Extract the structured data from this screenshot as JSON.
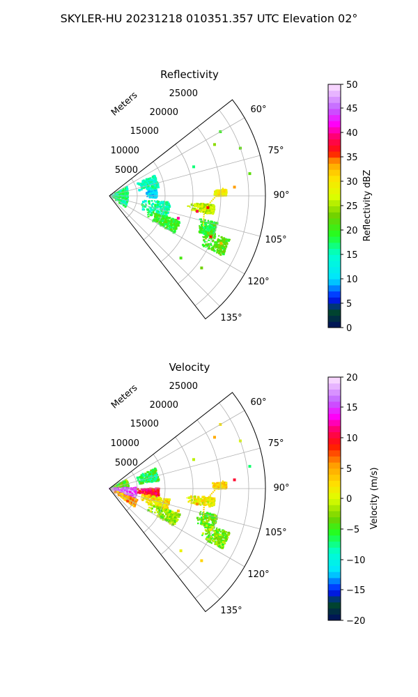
{
  "figure": {
    "title": "SKYLER-HU  20231218  010351.357 UTC Elevation 02°"
  },
  "panels": [
    {
      "title": "Reflectivity",
      "radius_label": "Meters",
      "range_ticks": [
        "5000",
        "10000",
        "15000",
        "20000",
        "25000"
      ],
      "angle_ticks": [
        "60°",
        "75°",
        "90°",
        "105°",
        "120°",
        "135°"
      ],
      "colorbar": {
        "label": "Reflectivity dBZ",
        "ticks": [
          "0",
          "5",
          "10",
          "15",
          "20",
          "25",
          "30",
          "35",
          "40",
          "45",
          "50"
        ]
      }
    },
    {
      "title": "Velocity",
      "radius_label": "Meters",
      "range_ticks": [
        "5000",
        "10000",
        "15000",
        "20000",
        "25000"
      ],
      "angle_ticks": [
        "60°",
        "75°",
        "90°",
        "105°",
        "120°",
        "135°"
      ],
      "colorbar": {
        "label": "Velocity (m/s)",
        "ticks": [
          "−20",
          "−15",
          "−10",
          "−5",
          "0",
          "5",
          "10",
          "15",
          "20"
        ]
      }
    }
  ],
  "chart_data": [
    {
      "type": "heatmap",
      "projection": "polar",
      "title": "Reflectivity",
      "radius_label": "Meters",
      "theta_range_deg": [
        52,
        142
      ],
      "r_range": [
        0,
        28000
      ],
      "range_ticks": [
        5000,
        10000,
        15000,
        20000,
        25000
      ],
      "angle_ticks_deg": [
        60,
        75,
        90,
        105,
        120,
        135
      ],
      "grid": true,
      "colorbar": {
        "label": "Reflectivity dBZ",
        "range": [
          0,
          50
        ],
        "ticks": [
          0,
          5,
          10,
          15,
          20,
          25,
          30,
          35,
          40,
          45,
          50
        ]
      },
      "echo_regions": [
        {
          "theta_deg": [
            63,
            125
          ],
          "r": [
            0,
            3500
          ],
          "value": 17
        },
        {
          "theta_deg": [
            66,
            81
          ],
          "r": [
            5000,
            9000
          ],
          "value": 15
        },
        {
          "theta_deg": [
            83,
            92
          ],
          "r": [
            6500,
            8500
          ],
          "value": 11
        },
        {
          "theta_deg": [
            96,
            112
          ],
          "r": [
            5500,
            11000
          ],
          "value": 16
        },
        {
          "theta_deg": [
            110,
            120
          ],
          "r": [
            7000,
            13500
          ],
          "value": 20
        },
        {
          "theta_deg": [
            104,
            112
          ],
          "r": [
            16500,
            20000
          ],
          "value": 19
        },
        {
          "theta_deg": [
            110,
            118
          ],
          "r": [
            18000,
            23000
          ],
          "value": 21
        },
        {
          "theta_deg": [
            95,
            100
          ],
          "r": [
            14000,
            19000
          ],
          "value": 26
        },
        {
          "theta_deg": [
            87,
            90
          ],
          "r": [
            18500,
            21000
          ],
          "value": 29
        }
      ],
      "lines": [
        {
          "name": "streak",
          "points": [
            [
              86,
              20500
            ],
            [
              98,
              17200
            ],
            [
              108,
              17700
            ]
          ],
          "value": 30
        }
      ],
      "scatter": [
        {
          "theta_deg": 100,
          "r": 16000,
          "value": 38
        },
        {
          "theta_deg": 96.8,
          "r": 17800,
          "value": 36
        },
        {
          "theta_deg": 86,
          "r": 22500,
          "value": 34
        },
        {
          "theta_deg": 112,
          "r": 19600,
          "value": 36
        },
        {
          "theta_deg": 113,
          "r": 21800,
          "value": 33
        },
        {
          "theta_deg": 108,
          "r": 13000,
          "value": 40
        },
        {
          "theta_deg": 70,
          "r": 25000,
          "value": 22
        },
        {
          "theta_deg": 60,
          "r": 23000,
          "value": 20
        },
        {
          "theta_deg": 64,
          "r": 21000,
          "value": 24
        },
        {
          "theta_deg": 71,
          "r": 16000,
          "value": 17
        },
        {
          "theta_deg": 131,
          "r": 17000,
          "value": 21
        },
        {
          "theta_deg": 128,
          "r": 21000,
          "value": 23
        },
        {
          "theta_deg": 81,
          "r": 25500,
          "value": 22
        }
      ]
    },
    {
      "type": "heatmap",
      "projection": "polar",
      "title": "Velocity",
      "radius_label": "Meters",
      "theta_range_deg": [
        52,
        142
      ],
      "r_range": [
        0,
        28000
      ],
      "range_ticks": [
        5000,
        10000,
        15000,
        20000,
        25000
      ],
      "angle_ticks_deg": [
        60,
        75,
        90,
        105,
        120,
        135
      ],
      "grid": true,
      "colorbar": {
        "label": "Velocity (m/s)",
        "range": [
          -20,
          20
        ],
        "ticks": [
          -20,
          -15,
          -10,
          -5,
          0,
          5,
          10,
          15,
          20
        ]
      },
      "echo_regions": [
        {
          "theta_deg": [
            63,
            88
          ],
          "r": [
            0,
            3500
          ],
          "value": -4
        },
        {
          "theta_deg": [
            88,
            112
          ],
          "r": [
            0,
            5000
          ],
          "value": 16
        },
        {
          "theta_deg": [
            112,
            126
          ],
          "r": [
            1000,
            5500
          ],
          "value": 5
        },
        {
          "theta_deg": [
            66,
            81
          ],
          "r": [
            5000,
            9000
          ],
          "value": -6
        },
        {
          "theta_deg": [
            90,
            100
          ],
          "r": [
            4500,
            9000
          ],
          "value": 10
        },
        {
          "theta_deg": [
            100,
            112
          ],
          "r": [
            5500,
            11000
          ],
          "value": 2
        },
        {
          "theta_deg": [
            110,
            120
          ],
          "r": [
            7000,
            13500
          ],
          "value": -2
        },
        {
          "theta_deg": [
            104,
            112
          ],
          "r": [
            16500,
            20000
          ],
          "value": -4
        },
        {
          "theta_deg": [
            110,
            118
          ],
          "r": [
            18000,
            23000
          ],
          "value": -3
        },
        {
          "theta_deg": [
            95,
            100
          ],
          "r": [
            14000,
            19000
          ],
          "value": 1
        },
        {
          "theta_deg": [
            87,
            90
          ],
          "r": [
            18500,
            21000
          ],
          "value": 3
        }
      ],
      "lines": [
        {
          "name": "streak",
          "points": [
            [
              86,
              20500
            ],
            [
              98,
              17200
            ],
            [
              108,
              17700
            ]
          ],
          "value": 3
        }
      ],
      "scatter": [
        {
          "theta_deg": 100,
          "r": 16000,
          "value": 6
        },
        {
          "theta_deg": 86,
          "r": 22500,
          "value": 10
        },
        {
          "theta_deg": 112,
          "r": 19600,
          "value": 2
        },
        {
          "theta_deg": 108,
          "r": 13000,
          "value": 4
        },
        {
          "theta_deg": 70,
          "r": 25000,
          "value": 0
        },
        {
          "theta_deg": 60,
          "r": 23000,
          "value": 2
        },
        {
          "theta_deg": 64,
          "r": 21000,
          "value": 5
        },
        {
          "theta_deg": 71,
          "r": 16000,
          "value": -1
        },
        {
          "theta_deg": 131,
          "r": 17000,
          "value": 1
        },
        {
          "theta_deg": 128,
          "r": 21000,
          "value": 3
        },
        {
          "theta_deg": 81,
          "r": 25500,
          "value": -7
        },
        {
          "theta_deg": 92,
          "r": 6000,
          "value": 12
        },
        {
          "theta_deg": 95,
          "r": 7500,
          "value": 11
        }
      ]
    }
  ]
}
